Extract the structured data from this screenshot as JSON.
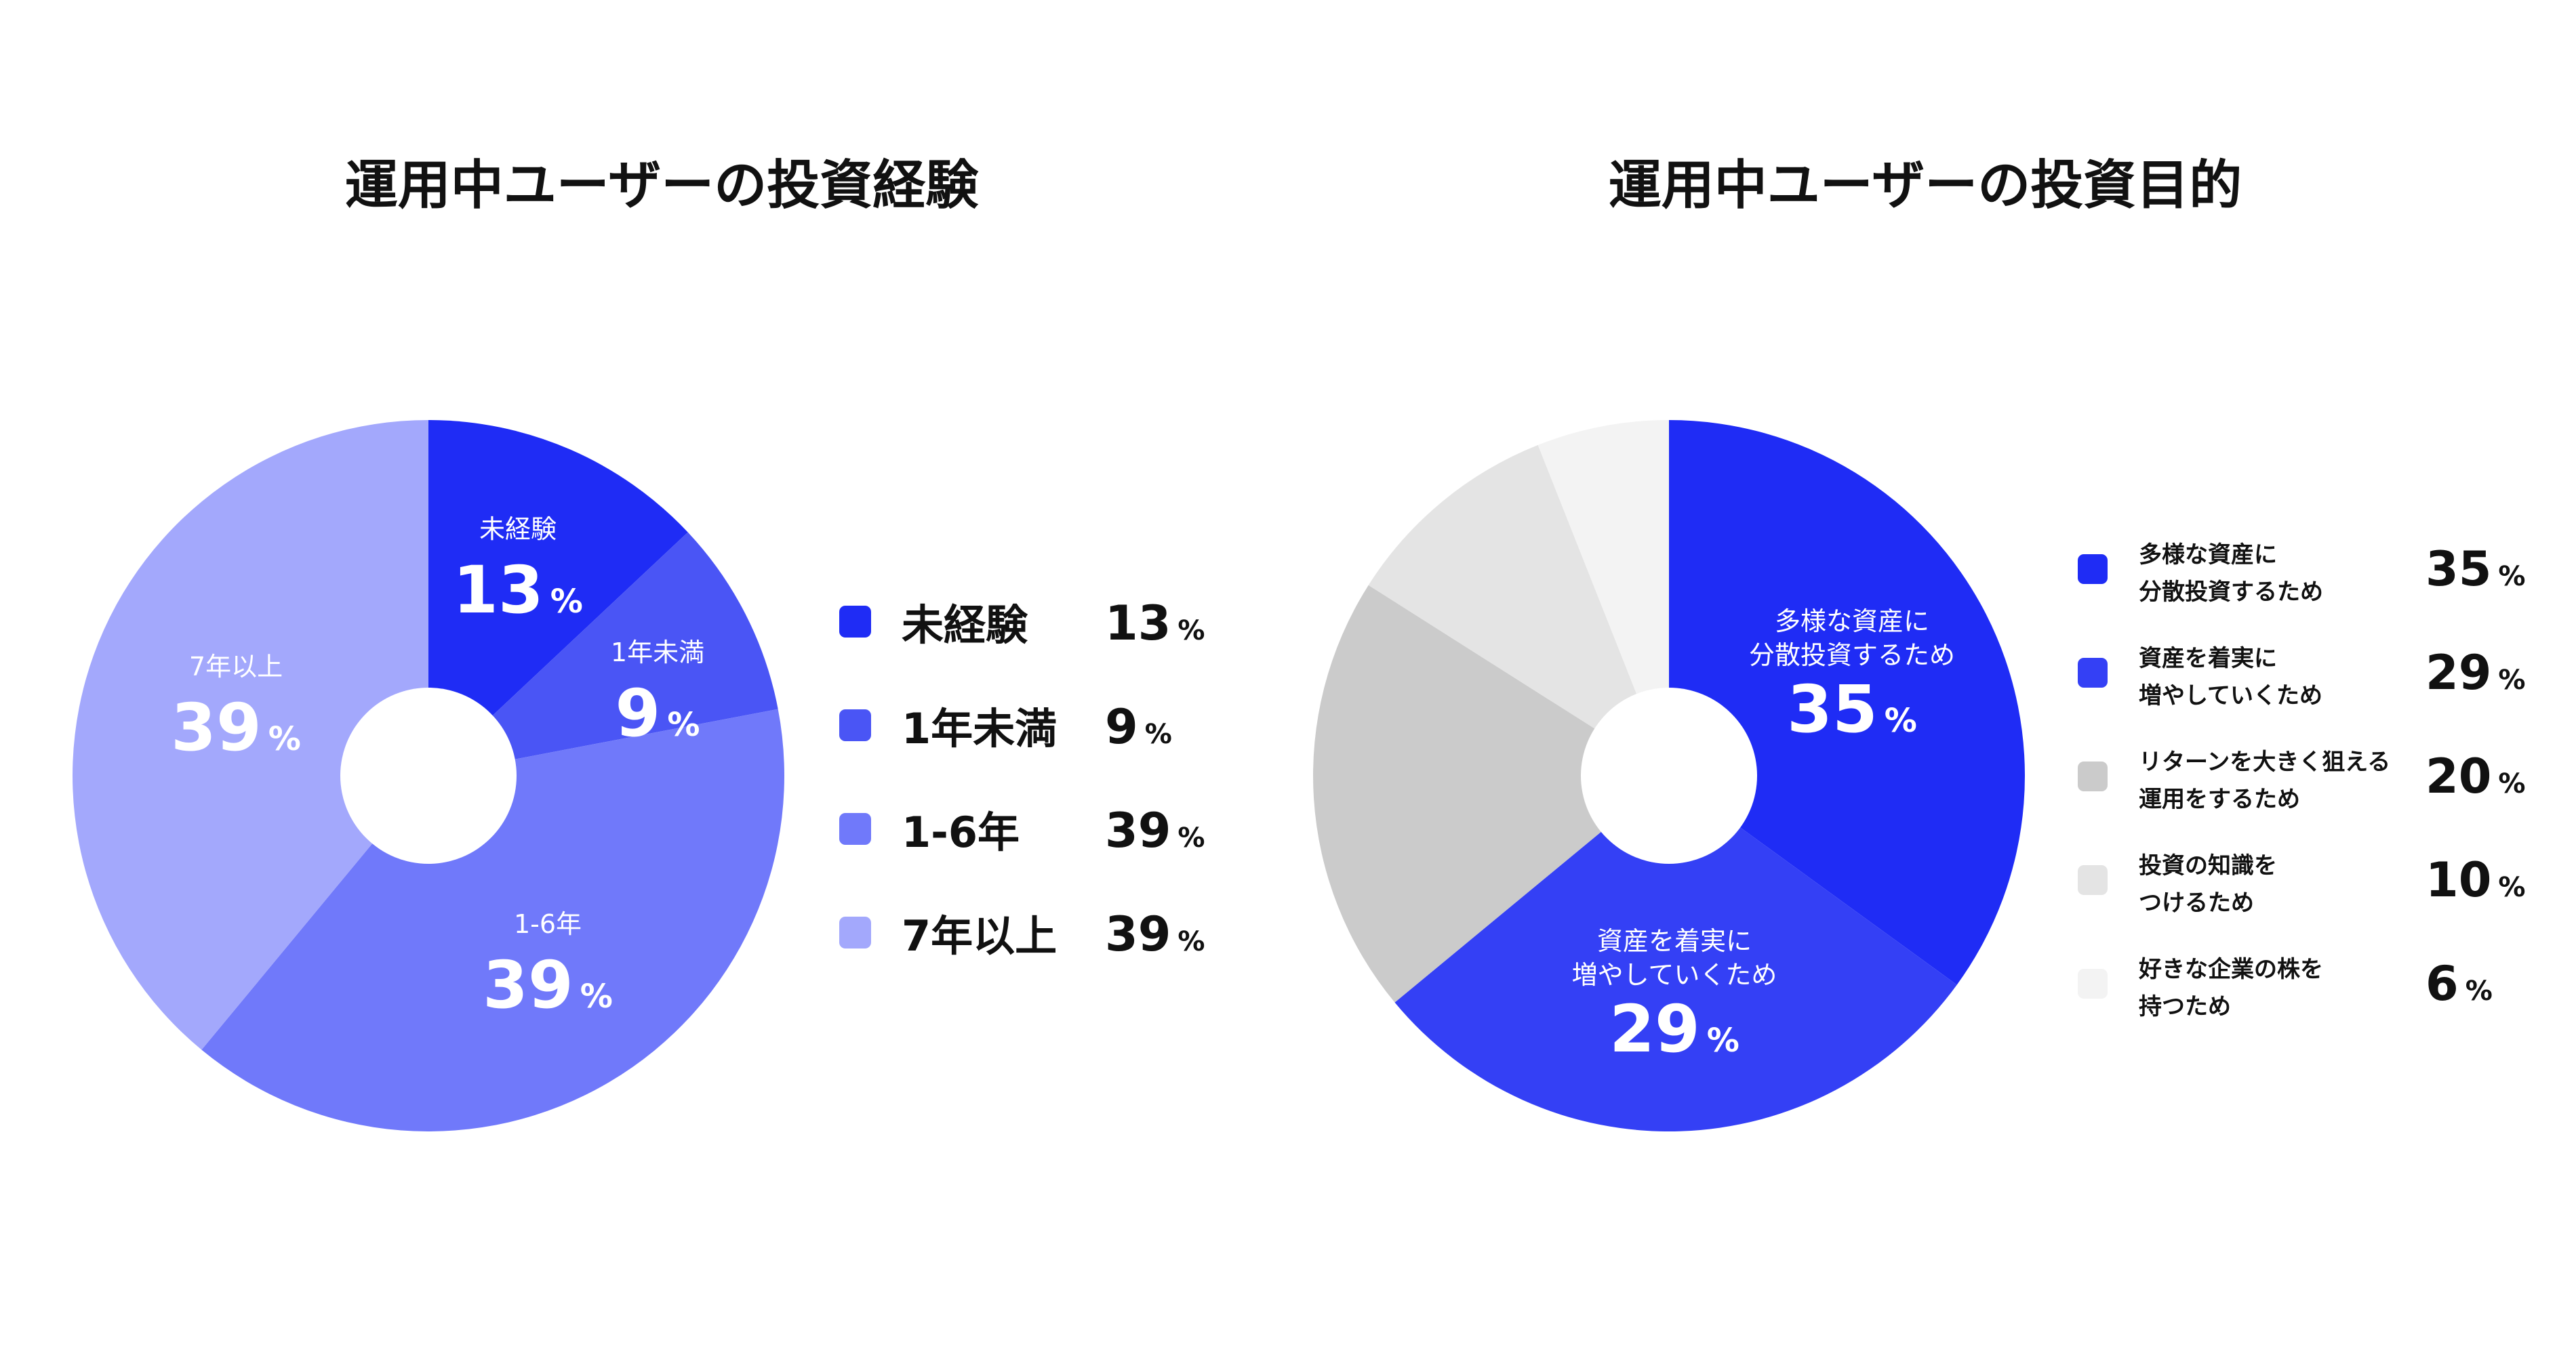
{
  "chart_data": [
    {
      "type": "pie",
      "title": "運用中ユーザーの投資経験",
      "categories": [
        "未経験",
        "1年未満",
        "1-6年",
        "7年以上"
      ],
      "values": [
        13,
        9,
        39,
        39
      ],
      "unit": "%",
      "colors": [
        "#1f2cf5",
        "#4a55f5",
        "#7079fa",
        "#a3a8fc"
      ],
      "slice_labels": [
        [
          "未経験"
        ],
        [
          "1年未満"
        ],
        [
          "1-6年"
        ],
        [
          "7年以上"
        ]
      ],
      "legend": [
        {
          "label": "未経験",
          "value": "13"
        },
        {
          "label": "1年未満",
          "value": "9"
        },
        {
          "label": "1-6年",
          "value": "39"
        },
        {
          "label": "7年以上",
          "value": "39"
        }
      ],
      "legend_placement": "right",
      "donut": true
    },
    {
      "type": "pie",
      "title": "運用中ユーザーの投資目的",
      "categories": [
        "多様な資産に分散投資するため",
        "資産を着実に増やしていくため",
        "リターンを大きく狙える運用をするため",
        "投資の知識をつけるため",
        "好きな企業の株を持つため"
      ],
      "values": [
        35,
        29,
        20,
        10,
        6
      ],
      "unit": "%",
      "colors": [
        "#1f2cf5",
        "#3440f5",
        "#cbcbcb",
        "#e4e4e4",
        "#f3f3f3"
      ],
      "slice_labels": [
        [
          "多様な資産に",
          "分散投資するため"
        ],
        [
          "資産を着実に",
          "増やしていくため"
        ],
        [],
        [],
        []
      ],
      "legend": [
        {
          "lines": [
            "多様な資産に",
            "分散投資するため"
          ],
          "value": "35"
        },
        {
          "lines": [
            "資産を着実に",
            "増やしていくため"
          ],
          "value": "29"
        },
        {
          "lines": [
            "リターンを大きく狙える",
            "運用をするため"
          ],
          "value": "20"
        },
        {
          "lines": [
            "投資の知識を",
            "つけるため"
          ],
          "value": "10"
        },
        {
          "lines": [
            "好きな企業の株を",
            "持つため"
          ],
          "value": "6"
        }
      ],
      "legend_placement": "right",
      "donut": true
    }
  ],
  "percent_sign": "%"
}
